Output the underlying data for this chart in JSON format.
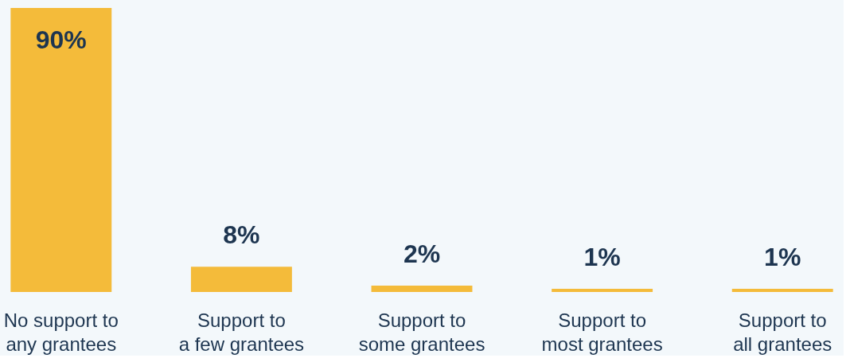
{
  "chart_data": {
    "type": "bar",
    "categories": [
      "No support to\nany grantees",
      "Support to\na few grantees",
      "Support to\nsome grantees",
      "Support to\nmost grantees",
      "Support to\nall grantees"
    ],
    "values": [
      90,
      8,
      2,
      1,
      1
    ],
    "color": "#f4bb3a",
    "value_labels": [
      "90%",
      "8%",
      "2%",
      "1%",
      "1%"
    ],
    "grid": false,
    "tick_labels": "x"
  }
}
